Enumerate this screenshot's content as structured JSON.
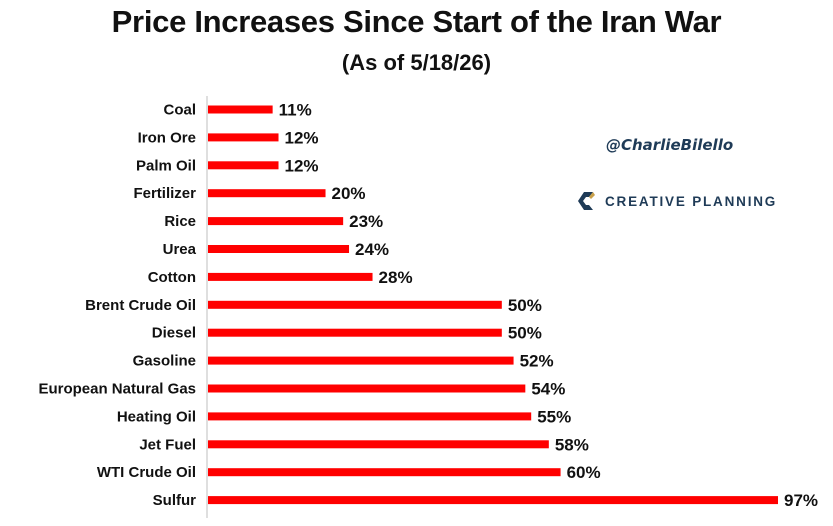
{
  "title": "Price Increases Since Start of the Iran War",
  "subtitle": "(As of 5/18/26)",
  "handle": "@CharlieBilello",
  "brand": {
    "name": "CREATIVE PLANNING",
    "icon": "creative-planning-logo-icon",
    "color": "#1f3b57"
  },
  "chart_data": {
    "type": "bar",
    "orientation": "horizontal",
    "title": "Price Increases Since Start of the Iran War",
    "subtitle": "(As of 5/18/26)",
    "categories": [
      "Coal",
      "Iron Ore",
      "Palm Oil",
      "Fertilizer",
      "Rice",
      "Urea",
      "Cotton",
      "Brent Crude Oil",
      "Diesel",
      "Gasoline",
      "European Natural Gas",
      "Heating Oil",
      "Jet Fuel",
      "WTI Crude Oil",
      "Sulfur"
    ],
    "values": [
      11,
      12,
      12,
      20,
      23,
      24,
      28,
      50,
      50,
      52,
      54,
      55,
      58,
      60,
      97
    ],
    "value_labels": [
      "11%",
      "12%",
      "12%",
      "20%",
      "23%",
      "24%",
      "28%",
      "50%",
      "50%",
      "52%",
      "54%",
      "55%",
      "58%",
      "60%",
      "97%"
    ],
    "xlim": [
      0,
      97
    ],
    "bar_color": "#ff0000",
    "grid": false,
    "legend": "none"
  }
}
